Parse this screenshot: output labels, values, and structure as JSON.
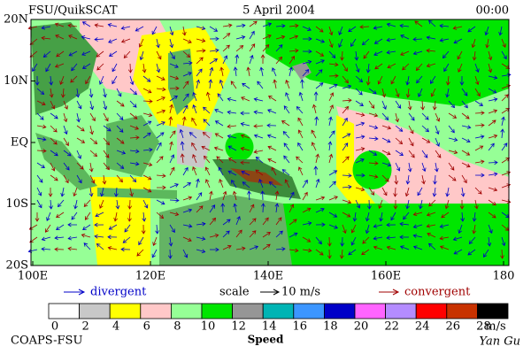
{
  "header": {
    "left": "FSU/QuikSCAT",
    "center": "5 April 2004",
    "right": "00:00"
  },
  "map": {
    "lat_labels": [
      "20N",
      "10N",
      "EQ",
      "10S",
      "20S"
    ],
    "lon_labels": [
      "100E",
      "120E",
      "140E",
      "160E",
      "180"
    ]
  },
  "legend": {
    "divergent": "divergent",
    "scale": "scale",
    "scale_value": "10 m/s",
    "convergent": "convergent"
  },
  "colorbar": {
    "colors": [
      "#ffffff",
      "#c8c8c8",
      "#ffff00",
      "#ffc8c8",
      "#96ff96",
      "#00e600",
      "#969696",
      "#00b4b4",
      "#3c96ff",
      "#0000c8",
      "#ff64ff",
      "#b48cff",
      "#ff0000",
      "#c83200",
      "#000000"
    ],
    "ticks": [
      0,
      2,
      4,
      6,
      8,
      10,
      12,
      14,
      16,
      18,
      20,
      22,
      24,
      26,
      28
    ],
    "unit": "m/s",
    "label": "Speed"
  },
  "footer": {
    "left": "COAPS-FSU",
    "right": "Yan Gu"
  }
}
